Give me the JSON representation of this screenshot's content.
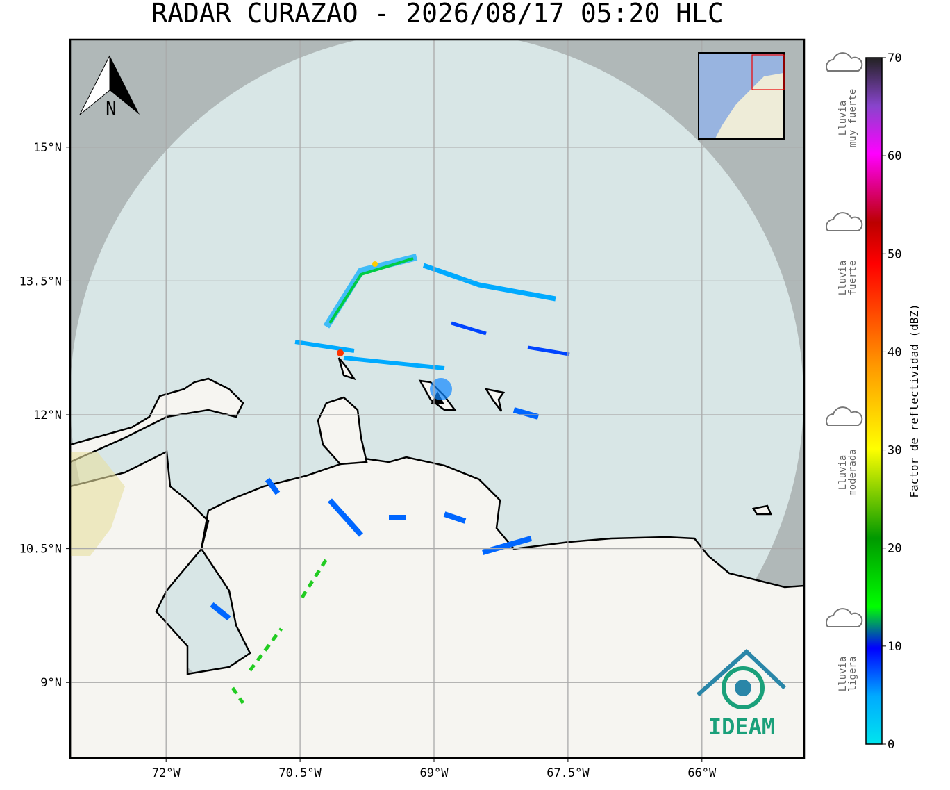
{
  "title": "RADAR CURAZAO - 2026/08/17 05:20 HLC",
  "map": {
    "lon_ticks": [
      {
        "value": -72,
        "label": "72°W"
      },
      {
        "value": -70.5,
        "label": "70.5°W"
      },
      {
        "value": -69,
        "label": "69°W"
      },
      {
        "value": -67.5,
        "label": "67.5°W"
      },
      {
        "value": -66,
        "label": "66°W"
      }
    ],
    "lat_ticks": [
      {
        "value": 15,
        "label": "15°N"
      },
      {
        "value": 13.5,
        "label": "13.5°N"
      },
      {
        "value": 12,
        "label": "12°N"
      },
      {
        "value": 10.5,
        "label": "10.5°N"
      },
      {
        "value": 9,
        "label": "9°N"
      }
    ],
    "north_label": "N",
    "logo_text": "IDEAM"
  },
  "colorbar": {
    "label": "Factor de reflectividad (dBZ)",
    "range": [
      0,
      70
    ],
    "ticks": [
      0,
      10,
      20,
      30,
      40,
      50,
      60,
      70
    ]
  },
  "legend": [
    {
      "lines": [
        "Lluvia",
        "muy fuerte"
      ]
    },
    {
      "lines": [
        "Lluvia",
        "fuerte"
      ]
    },
    {
      "lines": [
        "Lluvia",
        "moderada"
      ]
    },
    {
      "lines": [
        "Lluvia",
        "ligera"
      ]
    }
  ]
}
